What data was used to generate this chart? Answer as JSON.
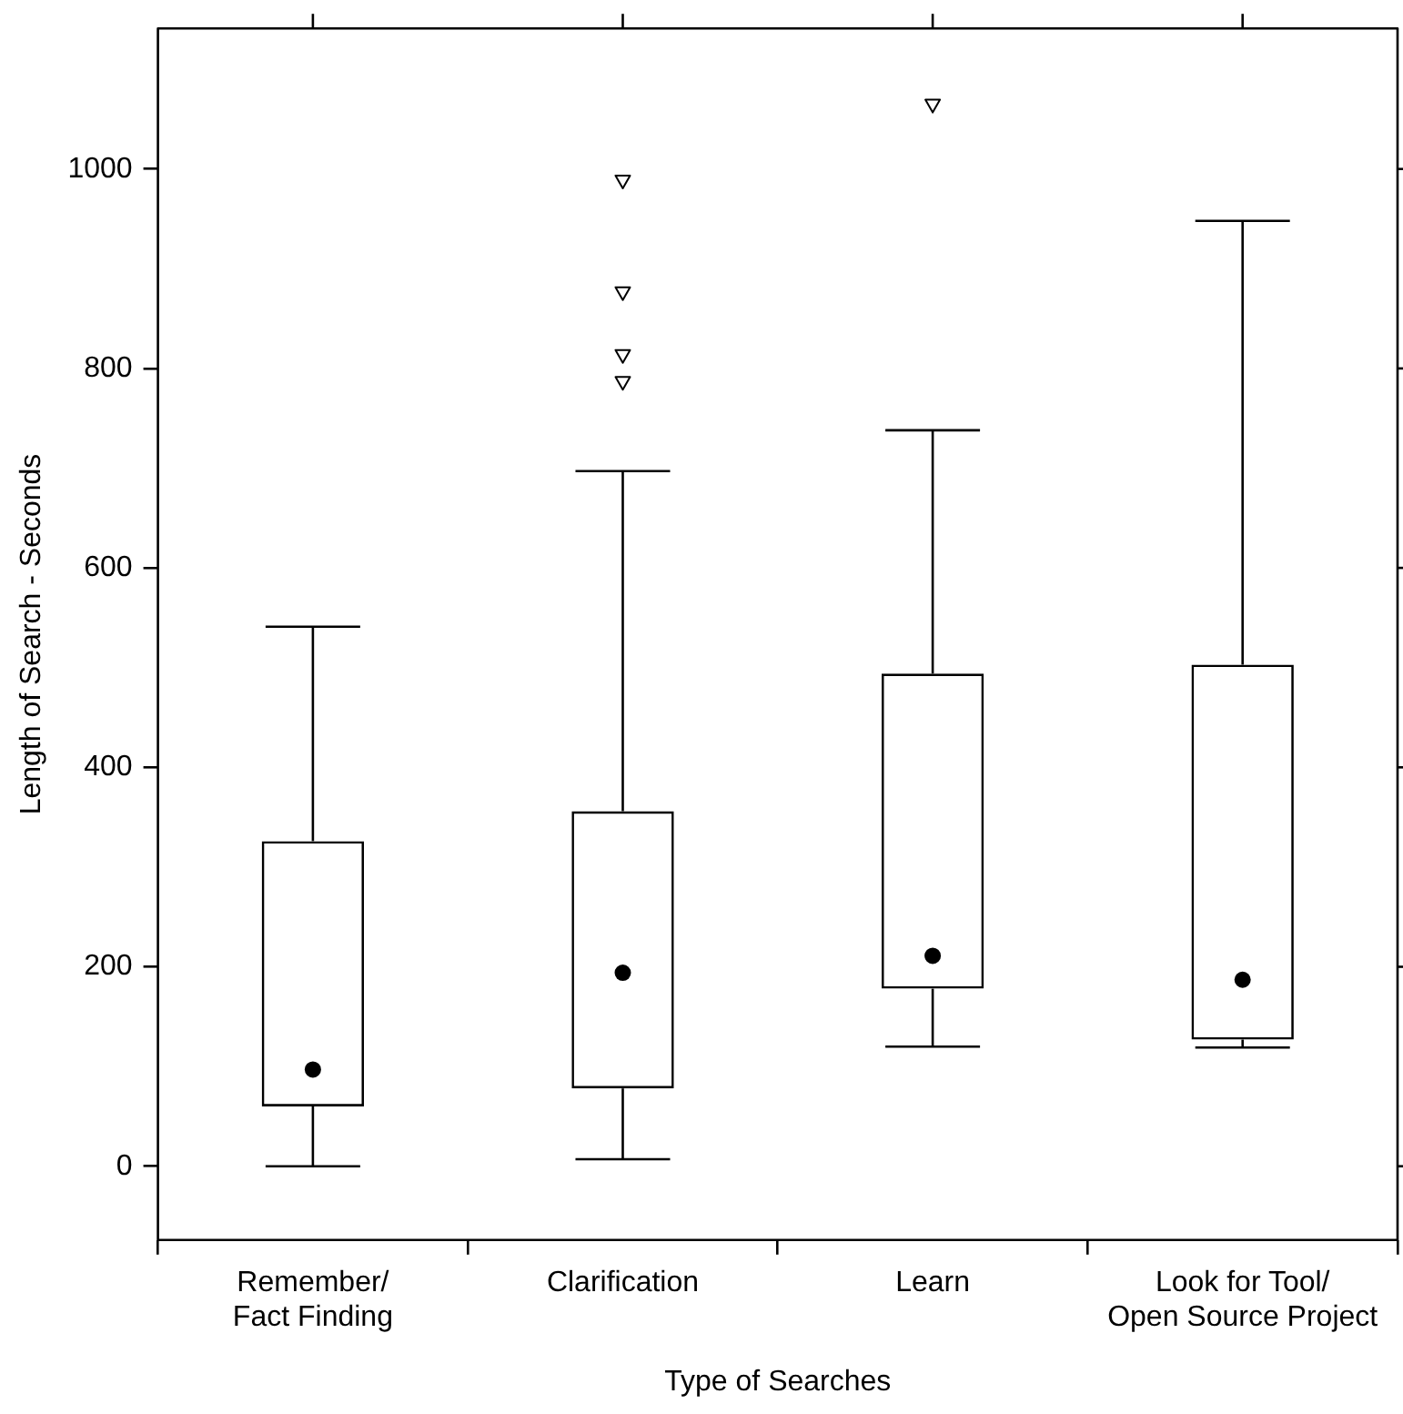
{
  "chart_data": {
    "type": "box",
    "xlabel": "Type of Searches",
    "ylabel": "Length of Search - Seconds",
    "categories": [
      "Remember/\nFact Finding",
      "Clarification",
      "Learn",
      "Look for Tool/\nOpen Source Project"
    ],
    "boxes": [
      {
        "low": 0,
        "q1": 60,
        "median": 97,
        "q3": 326,
        "high": 541
      },
      {
        "low": 7,
        "q1": 78,
        "median": 194,
        "q3": 356,
        "high": 697,
        "outliers": [
          988,
          876,
          813,
          786
        ]
      },
      {
        "low": 120,
        "q1": 178,
        "median": 211,
        "q3": 494,
        "high": 738,
        "outliers": [
          1064
        ]
      },
      {
        "low": 119,
        "q1": 127,
        "median": 187,
        "q3": 503,
        "high": 948
      }
    ],
    "ylim": [
      -74,
      1141
    ],
    "yticks": [
      0,
      200,
      400,
      600,
      800,
      1000
    ],
    "grid": false
  }
}
